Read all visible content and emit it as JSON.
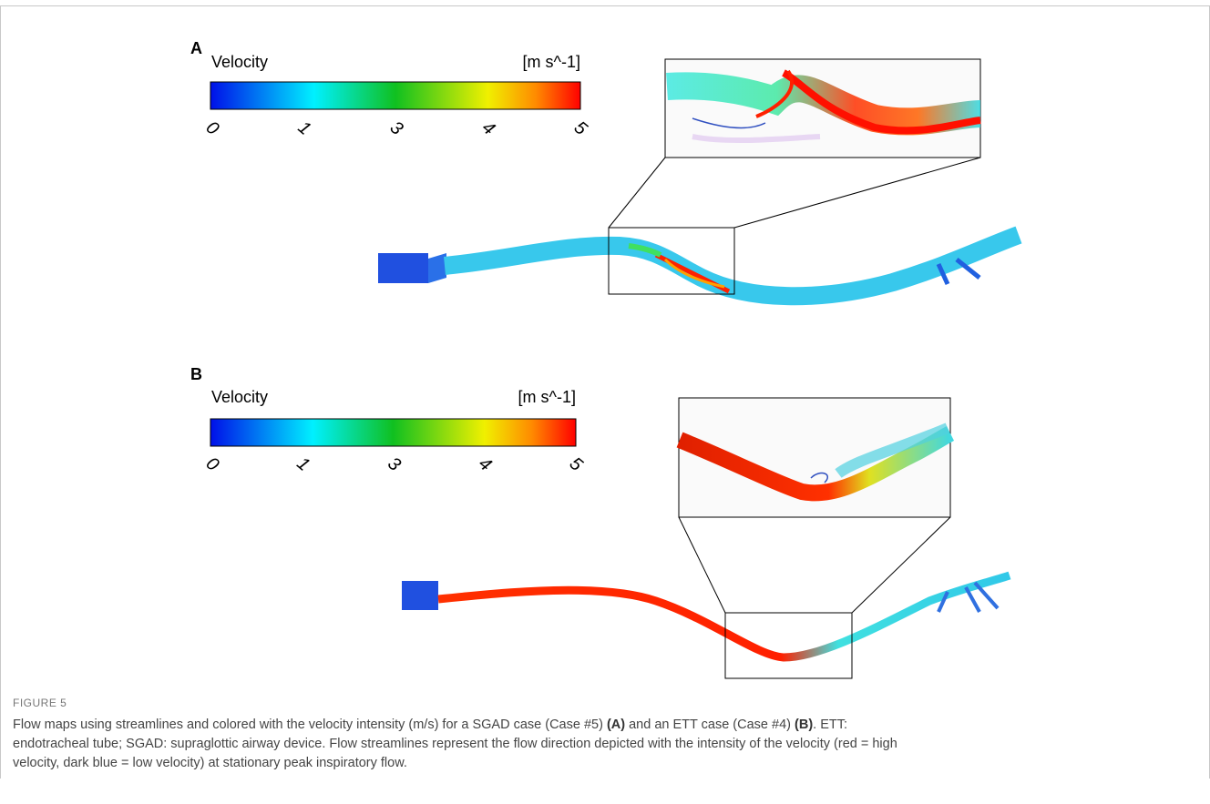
{
  "panel_a": {
    "label": "A",
    "legend_title": "Velocity",
    "unit": "[m s^-1]",
    "ticks": [
      "0",
      "1",
      "3",
      "4",
      "5"
    ]
  },
  "panel_b": {
    "label": "B",
    "legend_title": "Velocity",
    "unit": "[m s^-1]",
    "ticks": [
      "0",
      "1",
      "3",
      "4",
      "5"
    ]
  },
  "caption": {
    "figure_label": "FIGURE 5",
    "segments": [
      "Flow maps using streamlines and colored with the velocity intensity (m/s) for a SGAD case (Case #5) ",
      "(A)",
      " and an ETT case (Case #4) ",
      "(B)",
      ". ETT: endotracheal tube; SGAD: supraglottic airway device. Flow streamlines represent the flow direction depicted with the intensity of the velocity (red = high velocity, dark blue = low velocity) at stationary peak inspiratory flow."
    ]
  }
}
